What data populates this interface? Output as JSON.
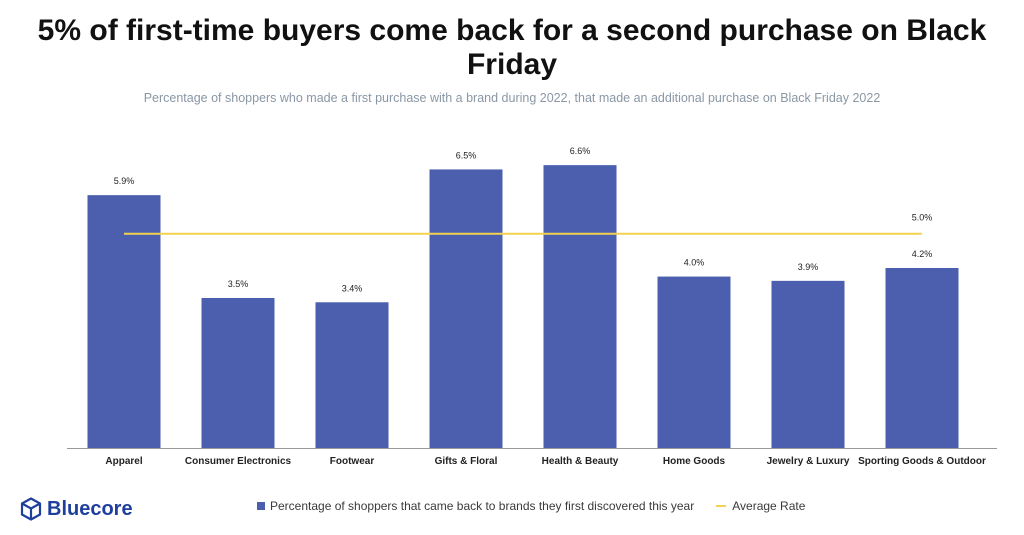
{
  "title": "5% of first-time buyers come back for a second purchase on Black Friday",
  "subtitle": "Percentage of shoppers who made a first purchase with a brand during 2022,  that made an additional purchase on Black Friday 2022",
  "brand": {
    "name": "Bluecore",
    "color": "#1f3f9c",
    "icon": "cube-icon"
  },
  "colors": {
    "bar": "#4c5fae",
    "average": "#f3d251",
    "axis": "#999999"
  },
  "chart_data": {
    "type": "bar",
    "categories": [
      "Apparel",
      "Consumer Electronics",
      "Footwear",
      "Gifts & Floral",
      "Health & Beauty",
      "Home Goods",
      "Jewelry & Luxury",
      "Sporting Goods & Outdoor"
    ],
    "series": [
      {
        "name": "Percentage of shoppers that came back to brands they first discovered this year",
        "values": [
          5.9,
          3.5,
          3.4,
          6.5,
          6.6,
          4.0,
          3.9,
          4.2
        ],
        "labels": [
          "5.9%",
          "3.5%",
          "3.4%",
          "6.5%",
          "6.6%",
          "4.0%",
          "3.9%",
          "4.2%"
        ]
      }
    ],
    "average": {
      "name": "Average Rate",
      "value": 5.0,
      "label": "5.0%"
    },
    "ylim": [
      0,
      7.0
    ],
    "grid": false,
    "legend_position": "bottom"
  }
}
